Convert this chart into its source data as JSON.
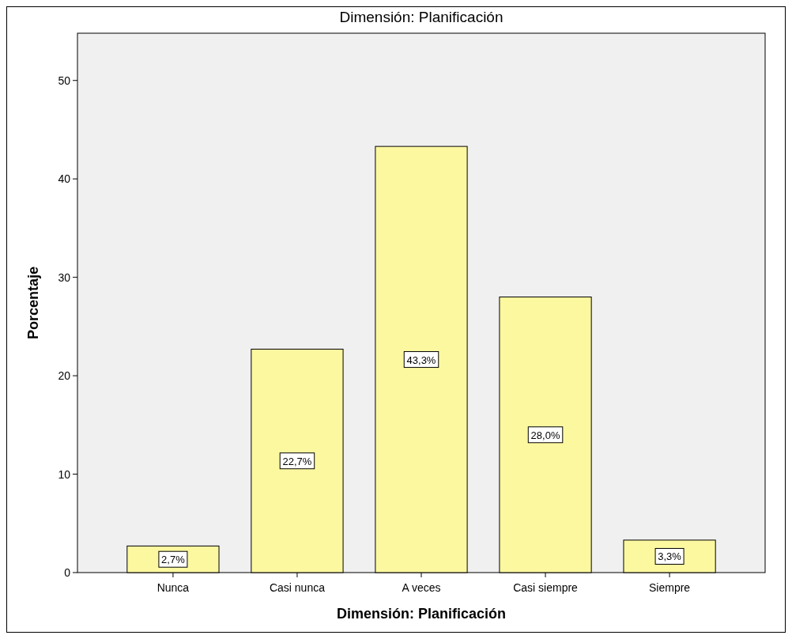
{
  "chart_data": {
    "type": "bar",
    "title": "Dimensión: Planificación",
    "xlabel": "Dimensión: Planificación",
    "ylabel": "Porcentaje",
    "categories": [
      "Nunca",
      "Casi nunca",
      "A veces",
      "Casi siempre",
      "Siempre"
    ],
    "values": [
      2.7,
      22.7,
      43.3,
      28.0,
      3.3
    ],
    "value_labels": [
      "2,7%",
      "22,7%",
      "43,3%",
      "28,0%",
      "3,3%"
    ],
    "color": "#fcf8a0",
    "ylim": [
      0,
      54.8
    ],
    "yticks": [
      0,
      10,
      20,
      30,
      40,
      50
    ],
    "grid": false
  }
}
